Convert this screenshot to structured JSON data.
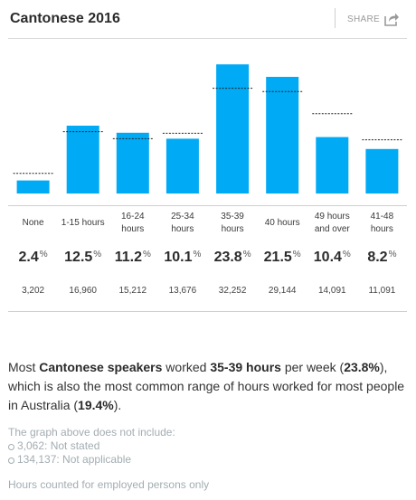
{
  "title": "Cantonese 2016",
  "share_label": "SHARE",
  "colors": {
    "bar": "#00AAF5",
    "benchmark": "#222222",
    "text": "#333333",
    "muted": "#A3ADB2"
  },
  "chart_data": {
    "type": "bar",
    "title": "Cantonese 2016",
    "categories": [
      "None",
      "1-15 hours",
      "16-24 hours",
      "25-34 hours",
      "35-39 hours",
      "40 hours",
      "49 hours and over",
      "41-48 hours"
    ],
    "category_lines": [
      [
        "None"
      ],
      [
        "1-15 hours"
      ],
      [
        "16-24",
        "hours"
      ],
      [
        "25-34",
        "hours"
      ],
      [
        "35-39",
        "hours"
      ],
      [
        "40 hours"
      ],
      [
        "49 hours",
        "and over"
      ],
      [
        "41-48",
        "hours"
      ]
    ],
    "series": [
      {
        "name": "Cantonese speakers",
        "values": [
          2.4,
          12.5,
          11.2,
          10.1,
          23.8,
          21.5,
          10.4,
          8.2
        ]
      },
      {
        "name": "Australia",
        "style": "dashed-marker",
        "values": [
          3.7,
          11.4,
          10.1,
          11.1,
          19.4,
          18.8,
          14.7,
          9.9
        ]
      }
    ],
    "value_labels": [
      "2.4",
      "12.5",
      "11.2",
      "10.1",
      "23.8",
      "21.5",
      "10.4",
      "8.2"
    ],
    "percent_symbol": "%",
    "counts": [
      "3,202",
      "16,960",
      "15,212",
      "13,676",
      "32,252",
      "29,144",
      "14,091",
      "11,091"
    ],
    "ylim": [
      0,
      25
    ],
    "grid": false,
    "legend": "none"
  },
  "summary": {
    "p1": "Most ",
    "b1": "Cantonese speakers",
    "p2": " worked ",
    "b2": "35-39 hours",
    "p3": " per week (",
    "b3": "23.8%",
    "p4": "), which is also the most common range of hours worked for most people in Australia (",
    "b4": "19.4%",
    "p5": ")."
  },
  "notes": {
    "intro": "The graph above does not include:",
    "items": [
      "3,062: Not stated",
      "134,137: Not applicable"
    ]
  },
  "footer": "Hours counted for employed persons only"
}
